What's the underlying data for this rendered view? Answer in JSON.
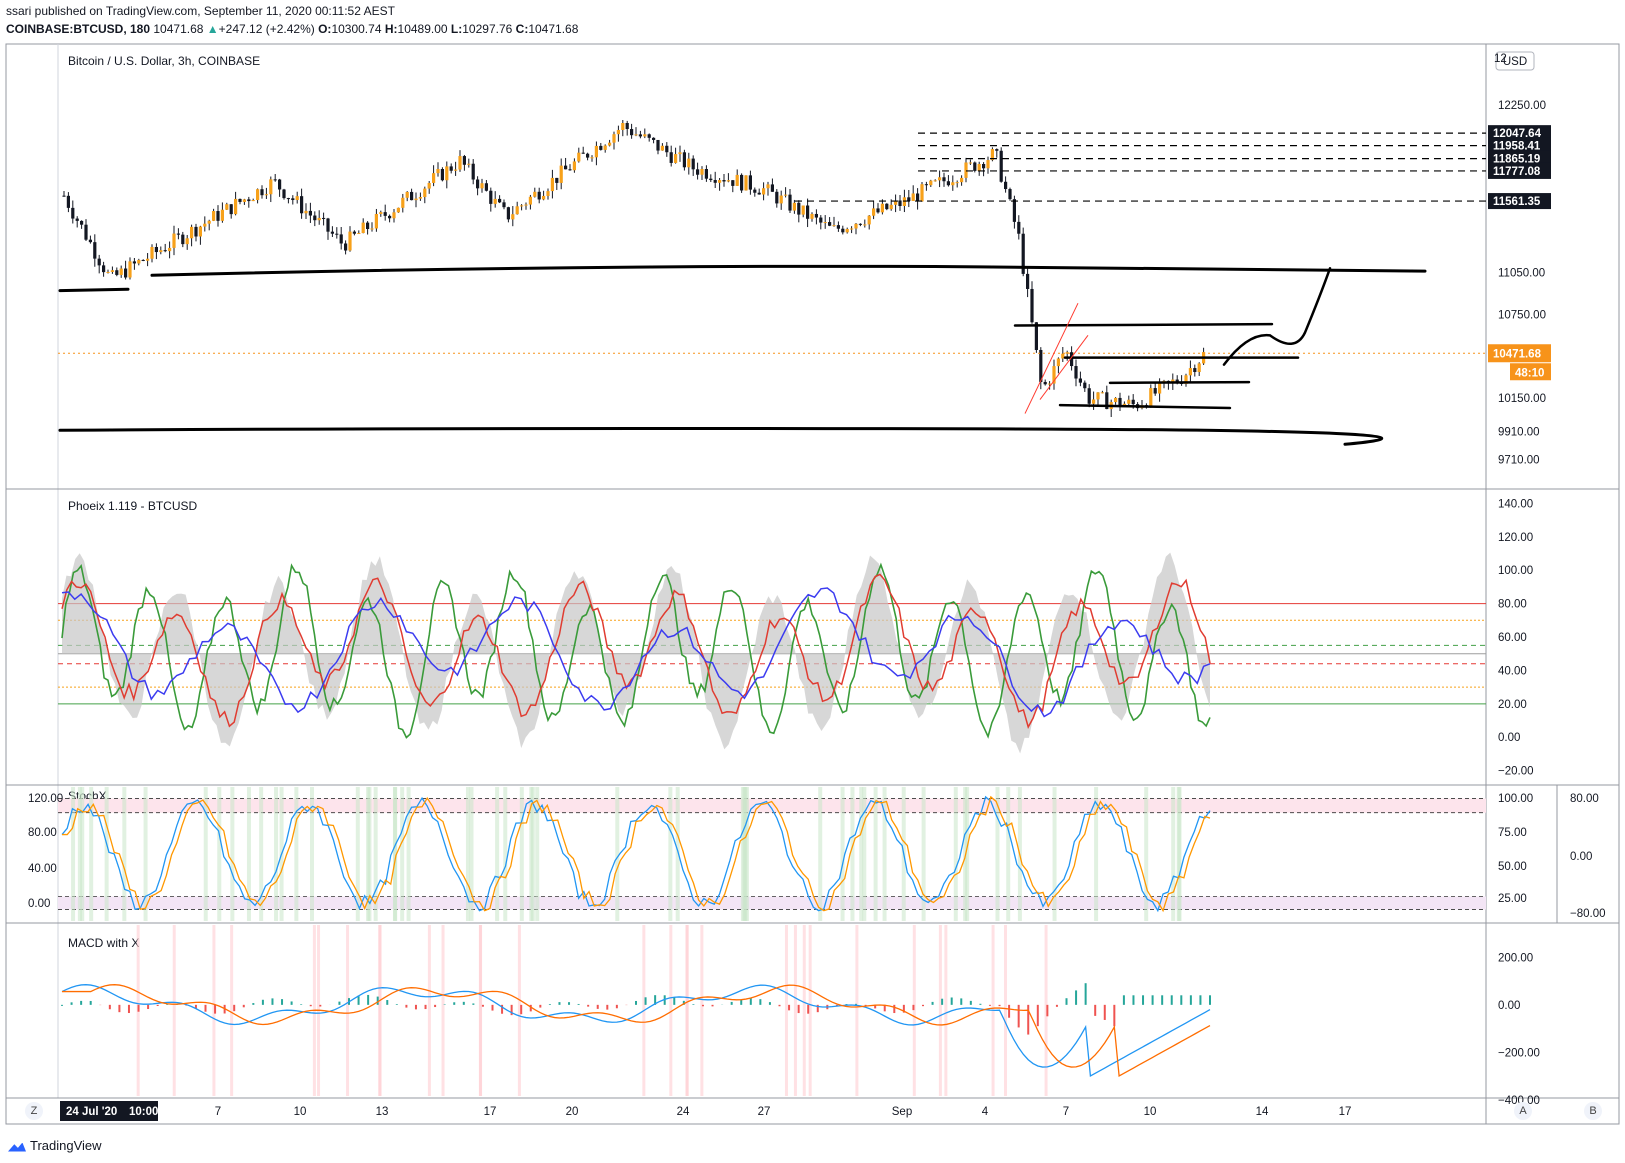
{
  "header": {
    "published": "ssari published on TradingView.com, September 11, 2020 00:11:52 AEST",
    "symbol": "COINBASE:BTCUSD, 180",
    "last": "10471.68",
    "change": "+247.12 (+2.42%)",
    "o_label": "O:",
    "o": "10300.74",
    "h_label": "H:",
    "h": "10489.00",
    "l_label": "L:",
    "l": "10297.76",
    "c_label": "C:",
    "c": "10471.68"
  },
  "footer": {
    "brand": "TradingView",
    "z_button": "Z",
    "a_button": "A",
    "b_button": "B"
  },
  "colors": {
    "bull": "#f7a11a",
    "bear": "#131722",
    "drawing": "#000000",
    "last_price": "#f7931a",
    "phoenix_green": "#3a9b3a",
    "phoenix_red": "#e03c31",
    "phoenix_blue": "#3c3cf0",
    "stoch_blue": "#2196f3",
    "stoch_orange": "#ff9800",
    "macd_blue": "#2196f3",
    "macd_orange": "#ff6d00",
    "hist_pos": "#26a69a",
    "hist_neg": "#ef5350"
  },
  "chart_data": [
    {
      "type": "candlestick",
      "title": "Bitcoin / U.S. Dollar, 3h, COINBASE",
      "currency": "USD",
      "y_ticks": [
        "9710.00",
        "9910.00",
        "10150.00",
        "10750.00",
        "11050.00",
        "12250.00"
      ],
      "y_top_partial": "12",
      "last_price": 10471.68,
      "last_price_label": "10471.68",
      "countdown": "48:10",
      "marked_levels": [
        {
          "value": 12047.64,
          "label": "12047.64"
        },
        {
          "value": 11958.41,
          "label": "11958.41"
        },
        {
          "value": 11865.19,
          "label": "11865.19"
        },
        {
          "value": 11777.08,
          "label": "11777.08"
        },
        {
          "value": 11561.35,
          "label": "11561.35"
        }
      ],
      "x_labels": [
        "24 Jul '20",
        "10:00",
        "7",
        "10",
        "13",
        "17",
        "20",
        "24",
        "27",
        "Sep",
        "4",
        "7",
        "10",
        "14",
        "17"
      ],
      "approx_close_path": [
        {
          "date": "2020-07-24",
          "close": 11600
        },
        {
          "date": "2020-07-26",
          "close": 11000
        },
        {
          "date": "2020-07-28",
          "close": 11200
        },
        {
          "date": "2020-08-02",
          "close": 11700
        },
        {
          "date": "2020-08-05",
          "close": 11250
        },
        {
          "date": "2020-08-10",
          "close": 11850
        },
        {
          "date": "2020-08-12",
          "close": 11450
        },
        {
          "date": "2020-08-17",
          "close": 12100
        },
        {
          "date": "2020-08-20",
          "close": 11800
        },
        {
          "date": "2020-08-23",
          "close": 11650
        },
        {
          "date": "2020-08-26",
          "close": 11350
        },
        {
          "date": "2020-08-29",
          "close": 11550
        },
        {
          "date": "2020-09-02",
          "close": 11900
        },
        {
          "date": "2020-09-03",
          "close": 11300
        },
        {
          "date": "2020-09-04",
          "close": 10200
        },
        {
          "date": "2020-09-05",
          "close": 10500
        },
        {
          "date": "2020-09-06",
          "close": 10150
        },
        {
          "date": "2020-09-08",
          "close": 10100
        },
        {
          "date": "2020-09-10",
          "close": 10300
        },
        {
          "date": "2020-09-11",
          "close": 10471.68
        }
      ]
    },
    {
      "type": "line",
      "title": "Phoeix 1.119 - BTCUSD",
      "y_ticks": [
        "140.00",
        "120.00",
        "100.00",
        "80.00",
        "60.00",
        "40.00",
        "20.00",
        "0.00",
        "−20.00"
      ],
      "ylim": [
        -25,
        145
      ],
      "levels": [
        80,
        70,
        55,
        50,
        44,
        30,
        20
      ]
    },
    {
      "type": "line",
      "title": "StochX",
      "left_y_ticks": [
        "120.00",
        "80.00",
        "40.00",
        "0.00"
      ],
      "y_ticks": [
        "100.00",
        "75.00",
        "50.00",
        "25.00"
      ],
      "right2_y_ticks": [
        "80.00",
        "0.00",
        "−80.00"
      ]
    },
    {
      "type": "line",
      "title": "MACD with X",
      "y_ticks": [
        "200.00",
        "0.00",
        "−200.00",
        "−400.00"
      ]
    }
  ]
}
